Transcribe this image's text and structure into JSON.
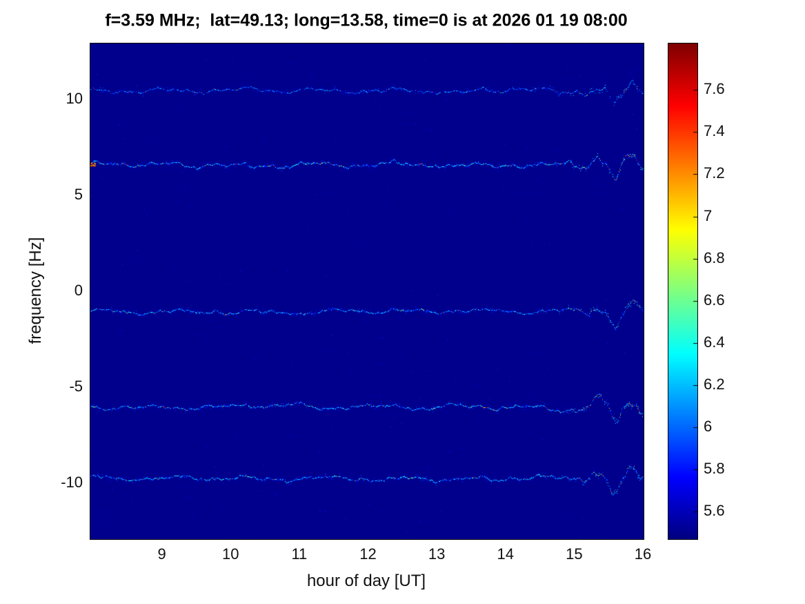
{
  "chart": {
    "title": "f=3.59 MHz;  lat=49.13; long=13.58, time=0 is at 2026 01 19 08:00",
    "xlabel": "hour of day [UT]",
    "ylabel": "frequency [Hz]"
  },
  "chart_data": {
    "type": "heatmap",
    "title": "f=3.59 MHz;  lat=49.13; long=13.58, time=0 is at 2026 01 19 08:00",
    "xlabel": "hour of day [UT]",
    "ylabel": "frequency [Hz]",
    "colormap": "jet",
    "grid": false,
    "xlim": [
      7.95,
      16
    ],
    "ylim": [
      -12.9,
      12.9
    ],
    "xticks": [
      "9",
      "10",
      "11",
      "12",
      "13",
      "14",
      "15",
      "16"
    ],
    "xtick_values": [
      9,
      10,
      11,
      12,
      13,
      14,
      15,
      16
    ],
    "yticks": [
      "10",
      "5",
      "0",
      "-5",
      "-10"
    ],
    "ytick_values": [
      10,
      5,
      0,
      -5,
      -10
    ],
    "colorbar": {
      "position": "right",
      "clim": [
        5.47,
        7.82
      ],
      "tick_values": [
        5.6,
        5.8,
        6.0,
        6.2,
        6.4,
        6.6,
        6.8,
        7.0,
        7.2,
        7.4,
        7.6
      ],
      "tick_labels": [
        "5.6",
        "5.8",
        "6",
        "6.2",
        "6.4",
        "6.6",
        "6.8",
        "7",
        "7.2",
        "7.4",
        "7.6"
      ]
    },
    "background_value": 5.5,
    "traces": [
      {
        "name": "doppler-trace-1",
        "center_hz": 10.45,
        "strength": 0.5,
        "wiggle_amp": 0.14,
        "dip_amp": 0.55,
        "gap": 0.35,
        "hot": 0.04,
        "hot_start": false,
        "seed": 101
      },
      {
        "name": "doppler-trace-2",
        "center_hz": 6.6,
        "strength": 1.0,
        "wiggle_amp": 0.16,
        "dip_amp": 0.75,
        "gap": 0.05,
        "hot": 0.1,
        "hot_start": true,
        "seed": 202
      },
      {
        "name": "doppler-trace-3",
        "center_hz": -1.05,
        "strength": 0.8,
        "wiggle_amp": 0.13,
        "dip_amp": 0.6,
        "gap": 0.12,
        "hot": 0.06,
        "hot_start": false,
        "seed": 303
      },
      {
        "name": "doppler-trace-4",
        "center_hz": -6.0,
        "strength": 0.9,
        "wiggle_amp": 0.15,
        "dip_amp": 0.8,
        "gap": 0.08,
        "hot": 0.09,
        "hot_start": false,
        "seed": 404
      },
      {
        "name": "doppler-trace-5",
        "center_hz": -9.75,
        "strength": 0.85,
        "wiggle_amp": 0.15,
        "dip_amp": 0.7,
        "gap": 0.1,
        "hot": 0.08,
        "hot_start": false,
        "seed": 505
      }
    ],
    "annotations": {
      "disturbance_hour": 15.6,
      "description": "Five quasi-horizontal Doppler traces; wave activity and a sharp frequency dip near 15.6 UT"
    }
  }
}
